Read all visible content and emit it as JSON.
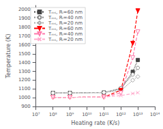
{
  "chart_data": {
    "type": "line",
    "xlabel": "Heating rate (K/s)",
    "ylabel": "Temperature (K)",
    "log": "x",
    "grid": false,
    "legend": "upper left",
    "xlim": [
      10000000.0,
      100000000000000.0
    ],
    "xticks": [
      {
        "value": 10000000.0,
        "label": "10⁷"
      },
      {
        "value": 100000000.0,
        "label": "10⁸"
      },
      {
        "value": 1000000000.0,
        "label": "10⁹"
      },
      {
        "value": 10000000000.0,
        "label": "10¹⁰"
      },
      {
        "value": 100000000000.0,
        "label": "10¹¹"
      },
      {
        "value": 1000000000000.0,
        "label": "10¹²"
      },
      {
        "value": 10000000000000.0,
        "label": "10¹³"
      },
      {
        "value": 100000000000000.0,
        "label": "10¹⁴"
      }
    ],
    "ylim": [
      900,
      2050
    ],
    "yticks": [
      900,
      1000,
      1100,
      1200,
      1300,
      1400,
      1500,
      1600,
      1700,
      1800,
      1900,
      2000
    ],
    "x": [
      100000000.0,
      1000000000.0,
      100000000000.0,
      1000000000000.0,
      5000000000000.0,
      10000000000000.0
    ],
    "series": [
      {
        "name": "Tₘₛ, Rᵢ=60 nm",
        "color": "#444444",
        "line_style": "dotted",
        "marker": "square",
        "values": [
          1055,
          1055,
          1060,
          1100,
          1295,
          1430
        ]
      },
      {
        "name": "Tₘₛ, Rᵢ=40 nm",
        "color": "#888888",
        "line_style": "dotted",
        "marker": "circle_open",
        "values": [
          1055,
          1055,
          1060,
          1110,
          1265,
          1340
        ]
      },
      {
        "name": "Tₘₛ, Rᵢ=20 nm",
        "color": "#aaaaaa",
        "line_style": "dotted",
        "marker": "diamond_open",
        "values": [
          1055,
          1055,
          1060,
          1080,
          1200,
          1240
        ]
      },
      {
        "name": "Tₘₛ, Rᵢ=60 nm",
        "color": "#ff0000",
        "line_style": "dashed",
        "marker": "triangle_down",
        "values": [
          1005,
          1005,
          1008,
          1085,
          1620,
          1990
        ]
      },
      {
        "name": "Tₘₛ, Rᵢ=40 nm",
        "color": "#ff77aa",
        "line_style": "dashed",
        "marker": "triangle_down_open",
        "values": [
          1005,
          1005,
          1008,
          1055,
          1455,
          1750
        ]
      },
      {
        "name": "Tₘₛ, Rᵢ=20 nm",
        "color": "#ffaacc",
        "line_style": "dashed",
        "marker": "x",
        "values": [
          1005,
          1005,
          1008,
          1025,
          1048,
          1058
        ]
      }
    ]
  }
}
